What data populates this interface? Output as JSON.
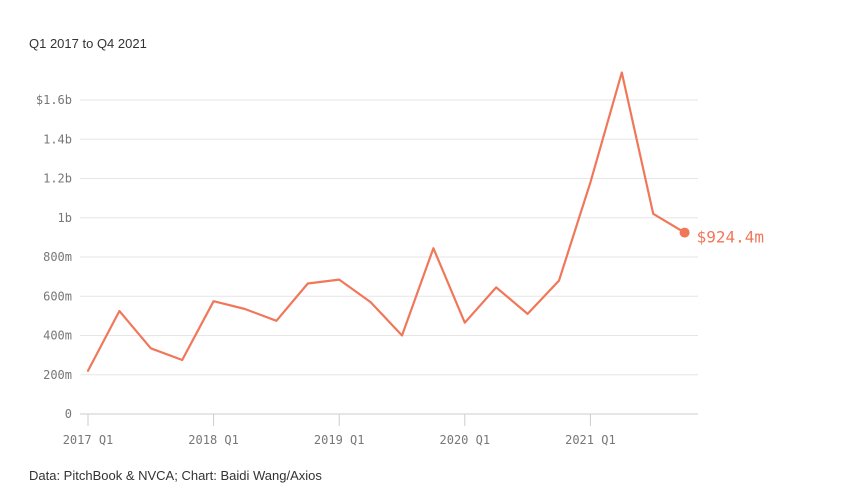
{
  "subtitle": "Q1 2017 to Q4 2021",
  "source": "Data: PitchBook & NVCA; Chart: Baidi Wang/Axios",
  "colors": {
    "line": "#f1775a",
    "grid": "#e6e6e6",
    "axis": "#cccccc",
    "tick_text": "#777777",
    "text": "#333333"
  },
  "chart_data": {
    "type": "line",
    "title": "",
    "xlabel": "",
    "ylabel": "",
    "x": [
      "2017 Q1",
      "2017 Q2",
      "2017 Q3",
      "2017 Q4",
      "2018 Q1",
      "2018 Q2",
      "2018 Q3",
      "2018 Q4",
      "2019 Q1",
      "2019 Q2",
      "2019 Q3",
      "2019 Q4",
      "2020 Q1",
      "2020 Q2",
      "2020 Q3",
      "2020 Q4",
      "2021 Q1",
      "2021 Q2",
      "2021 Q3",
      "2021 Q4"
    ],
    "series": [
      {
        "values": [
          220,
          525,
          335,
          275,
          575,
          535,
          475,
          665,
          685,
          570,
          400,
          845,
          465,
          645,
          510,
          680,
          1180,
          1740,
          1020,
          924.4
        ]
      }
    ],
    "ylim": [
      0,
      1600
    ],
    "y_ticks": [
      {
        "value": 0,
        "label": "0"
      },
      {
        "value": 200,
        "label": "200m"
      },
      {
        "value": 400,
        "label": "400m"
      },
      {
        "value": 600,
        "label": "600m"
      },
      {
        "value": 800,
        "label": "800m"
      },
      {
        "value": 1000,
        "label": "1b"
      },
      {
        "value": 1200,
        "label": "1.2b"
      },
      {
        "value": 1400,
        "label": "1.4b"
      },
      {
        "value": 1600,
        "label": "$1.6b"
      }
    ],
    "x_ticks": [
      {
        "index": 0,
        "label": "2017 Q1"
      },
      {
        "index": 4,
        "label": "2018 Q1"
      },
      {
        "index": 8,
        "label": "2019 Q1"
      },
      {
        "index": 12,
        "label": "2020 Q1"
      },
      {
        "index": 16,
        "label": "2021 Q1"
      }
    ],
    "end_label": "$924.4m",
    "grid": true
  }
}
